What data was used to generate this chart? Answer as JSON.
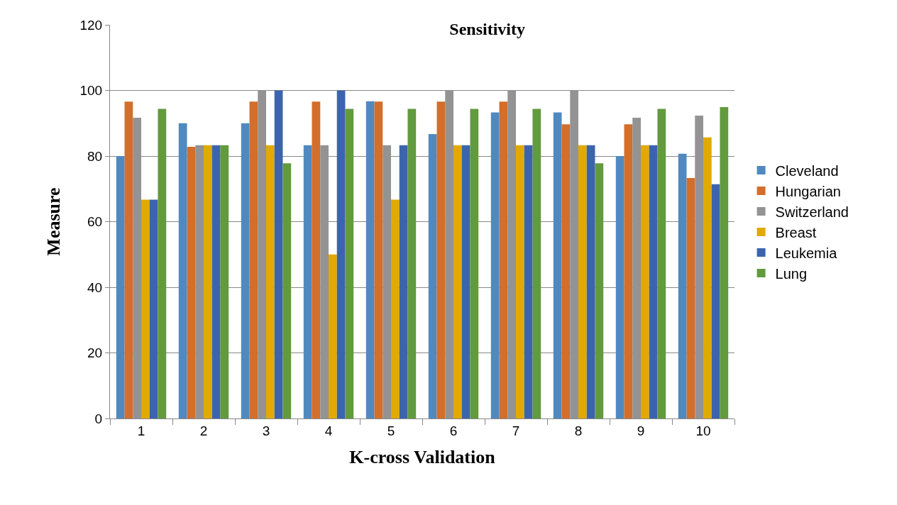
{
  "chart_data": {
    "type": "bar",
    "title": "Sensitivity",
    "xlabel": "K-cross Validation",
    "ylabel": "Measure",
    "categories": [
      "1",
      "2",
      "3",
      "4",
      "5",
      "6",
      "7",
      "8",
      "9",
      "10"
    ],
    "series": [
      {
        "name": "Cleveland",
        "color": "#5089c0",
        "values": [
          80,
          90,
          90,
          83.3,
          96.7,
          86.7,
          93.3,
          93.3,
          80,
          80.7
        ]
      },
      {
        "name": "Hungarian",
        "color": "#d36e2b",
        "values": [
          96.6,
          82.8,
          96.6,
          96.6,
          96.6,
          96.6,
          96.6,
          89.7,
          89.7,
          73.3
        ]
      },
      {
        "name": "Switzerland",
        "color": "#939393",
        "values": [
          91.7,
          83.3,
          100,
          83.3,
          83.3,
          100,
          100,
          100,
          91.7,
          92.3
        ]
      },
      {
        "name": "Breast",
        "color": "#e2a900",
        "values": [
          66.7,
          83.3,
          83.3,
          50,
          66.7,
          83.3,
          83.3,
          83.3,
          83.3,
          85.7
        ]
      },
      {
        "name": "Leukemia",
        "color": "#3c64ae",
        "values": [
          66.7,
          83.3,
          100,
          100,
          83.3,
          83.3,
          83.3,
          83.3,
          83.3,
          71.4
        ]
      },
      {
        "name": "Lung",
        "color": "#629a3e",
        "values": [
          94.4,
          83.3,
          77.8,
          94.4,
          94.4,
          94.4,
          94.4,
          77.8,
          94.4,
          94.9
        ]
      }
    ],
    "ylim": [
      0,
      120
    ],
    "yticks": [
      0,
      20,
      40,
      60,
      80,
      100,
      120
    ],
    "grid": "y",
    "legend": "right"
  }
}
